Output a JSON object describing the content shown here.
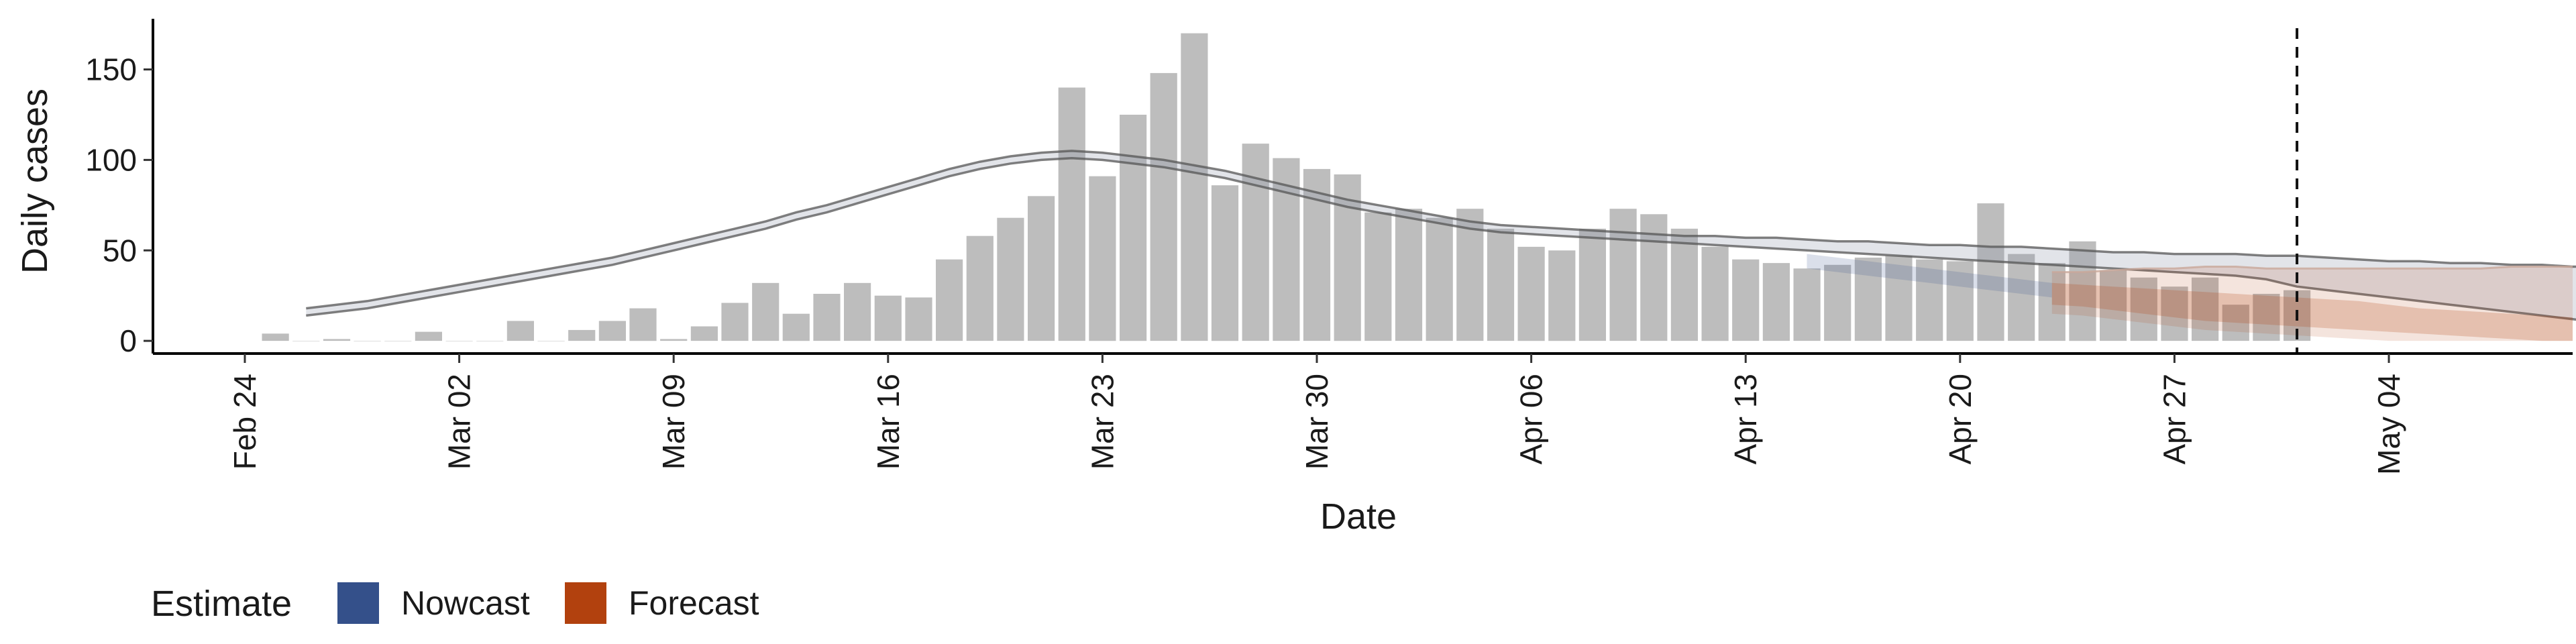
{
  "chart_data": {
    "type": "bar",
    "xlabel": "Date",
    "ylabel": "Daily cases",
    "x_range": [
      "2020-02-21",
      "2020-05-10"
    ],
    "ylim": [
      -7,
      178
    ],
    "y_ticks": [
      0,
      50,
      100,
      150
    ],
    "x_ticks": [
      {
        "date": "2020-02-24",
        "label": "Feb 24"
      },
      {
        "date": "2020-03-02",
        "label": "Mar 02"
      },
      {
        "date": "2020-03-09",
        "label": "Mar 09"
      },
      {
        "date": "2020-03-16",
        "label": "Mar 16"
      },
      {
        "date": "2020-03-23",
        "label": "Mar 23"
      },
      {
        "date": "2020-03-30",
        "label": "Mar 30"
      },
      {
        "date": "2020-04-06",
        "label": "Apr 06"
      },
      {
        "date": "2020-04-13",
        "label": "Apr 13"
      },
      {
        "date": "2020-04-20",
        "label": "Apr 20"
      },
      {
        "date": "2020-04-27",
        "label": "Apr 27"
      },
      {
        "date": "2020-05-04",
        "label": "May 04"
      }
    ],
    "grid": false,
    "legend_position": "bottom-left",
    "colors": {
      "bar": "#bdbdbd",
      "nowcast": "#34508a",
      "forecast": "#b2410e",
      "line": "#555555"
    },
    "reference_line": {
      "date": "2020-05-01",
      "style": "dashed"
    },
    "legend": {
      "title": "Estimate",
      "entries": [
        {
          "label": "Nowcast",
          "color": "#34508a"
        },
        {
          "label": "Forecast",
          "color": "#b2410e"
        }
      ]
    },
    "reported_cases": {
      "start_date": "2020-02-25",
      "values": [
        4,
        0,
        1,
        0,
        0,
        5,
        0,
        0,
        11,
        0,
        6,
        11,
        18,
        1,
        8,
        21,
        32,
        15,
        26,
        32,
        25,
        24,
        45,
        58,
        68,
        80,
        140,
        91,
        125,
        148,
        170,
        86,
        109,
        101,
        95,
        92,
        71,
        73,
        68,
        73,
        62,
        52,
        50,
        62,
        73,
        70,
        62,
        52,
        45,
        43,
        40,
        42,
        46,
        47,
        45,
        44,
        76,
        48,
        43,
        55,
        39,
        35,
        30,
        35,
        20,
        26,
        28
      ]
    },
    "estimate_ribbon": {
      "start_date": "2020-02-26",
      "mid": [
        16,
        18,
        20,
        23,
        26,
        29,
        32,
        35,
        38,
        41,
        44,
        48,
        52,
        56,
        60,
        64,
        69,
        73,
        78,
        83,
        88,
        93,
        97,
        100,
        102,
        103,
        102,
        100,
        98,
        95,
        92,
        88,
        84,
        80,
        76,
        73,
        70,
        67,
        64,
        62,
        61,
        60,
        59,
        58,
        57,
        56,
        56,
        55,
        54,
        53,
        52,
        52,
        51,
        50,
        49,
        48,
        47,
        46,
        46,
        45,
        45,
        46,
        47,
        47,
        47,
        47,
        47,
        47,
        46,
        46,
        46,
        46,
        45,
        45,
        45,
        45,
        45,
        45,
        45,
        45,
        45,
        45
      ],
      "low": [
        14,
        16,
        18,
        21,
        24,
        27,
        30,
        33,
        36,
        39,
        42,
        46,
        50,
        54,
        58,
        62,
        67,
        71,
        76,
        81,
        86,
        91,
        95,
        98,
        100,
        101,
        100,
        98,
        96,
        93,
        90,
        86,
        82,
        78,
        74,
        71,
        68,
        65,
        62,
        60,
        59,
        58,
        57,
        56,
        55,
        54,
        53,
        52,
        51,
        50,
        49,
        48,
        47,
        46,
        45,
        44,
        43,
        42,
        41,
        40,
        39,
        38,
        37,
        36,
        34,
        30,
        28,
        26,
        24,
        22,
        20,
        18,
        16,
        14,
        12,
        10,
        8,
        6,
        5,
        3,
        1,
        0
      ],
      "high": [
        18,
        20,
        22,
        25,
        28,
        31,
        34,
        37,
        40,
        43,
        46,
        50,
        54,
        58,
        62,
        66,
        71,
        75,
        80,
        85,
        90,
        95,
        99,
        102,
        104,
        105,
        104,
        102,
        100,
        97,
        94,
        90,
        86,
        82,
        78,
        75,
        72,
        69,
        66,
        64,
        63,
        62,
        61,
        60,
        59,
        58,
        58,
        57,
        57,
        56,
        55,
        55,
        54,
        53,
        53,
        52,
        52,
        51,
        50,
        49,
        49,
        48,
        48,
        48,
        47,
        47,
        46,
        45,
        44,
        44,
        43,
        43,
        42,
        42,
        41,
        41,
        40,
        40,
        40,
        39,
        39,
        40
      ]
    },
    "nowcast_ribbon": {
      "start_date": "2020-04-15",
      "mid": [
        44,
        42,
        40,
        38,
        36,
        34,
        32,
        30,
        28
      ],
      "low": [
        40,
        38,
        36,
        34,
        32,
        30,
        28,
        26,
        24
      ],
      "high": [
        48,
        46,
        44,
        42,
        40,
        38,
        36,
        34,
        32
      ]
    },
    "forecast_ribbon": {
      "start_date": "2020-04-23",
      "outer_low": [
        15,
        14,
        12,
        10,
        8,
        6,
        5,
        4,
        3,
        2,
        1,
        0,
        0,
        0,
        0,
        0,
        0,
        0
      ],
      "outer_high": [
        38,
        38,
        39,
        40,
        40,
        41,
        41,
        40,
        40,
        40,
        40,
        40,
        40,
        40,
        40,
        41,
        41,
        41
      ],
      "inner_low": [
        20,
        19,
        17,
        15,
        13,
        11,
        10,
        9,
        8,
        7,
        6,
        5,
        4,
        3,
        2,
        1,
        0,
        0
      ],
      "inner_high": [
        32,
        31,
        30,
        29,
        28,
        27,
        26,
        25,
        24,
        23,
        22,
        20,
        18,
        17,
        16,
        15,
        14,
        13
      ]
    }
  }
}
